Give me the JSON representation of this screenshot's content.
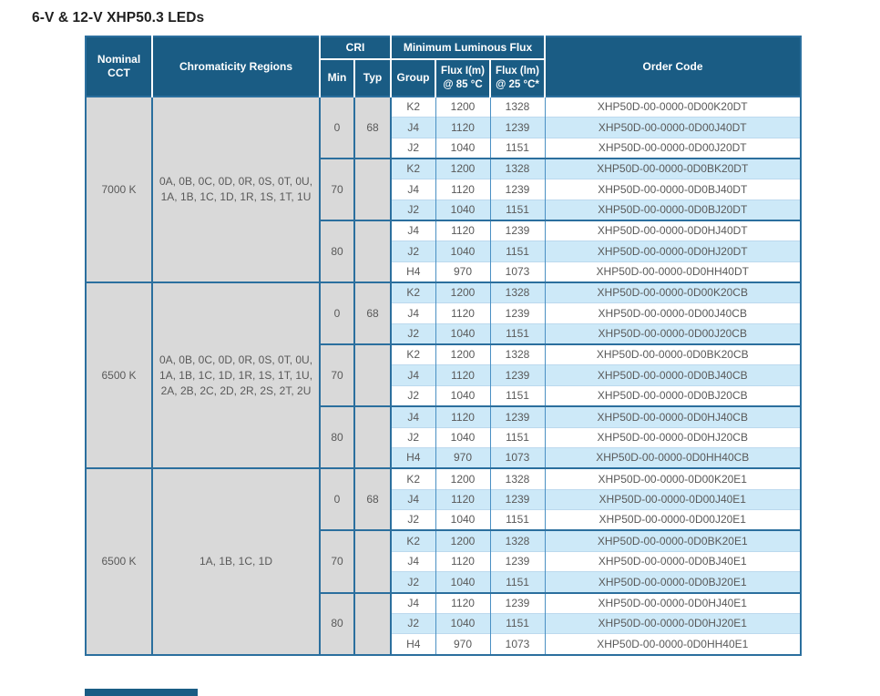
{
  "page_title": "6-V & 12-V XHP50.3 LEDs",
  "colors": {
    "header_navy": "#1a5c84",
    "border_dark": "#2b6f9e",
    "stripe_blue": "#cde9f8",
    "cell_gray": "#d9d9d9",
    "text_gray": "#595959"
  },
  "table": {
    "headers": {
      "nominal_cct": "Nominal\nCCT",
      "chromaticity": "Chromaticity Regions",
      "cri": "CRI",
      "min": "Min",
      "typ": "Typ",
      "min_luminous_flux": "Minimum Luminous Flux",
      "group": "Group",
      "flux85": "Flux I(m)\n@ 85 °C",
      "flux25": "Flux (lm)\n@ 25 °C*",
      "order_code": "Order Code"
    },
    "cct_groups": [
      {
        "cct": "7000 K",
        "chromaticity": "0A, 0B, 0C, 0D, 0R, 0S, 0T, 0U,\n1A, 1B, 1C, 1D, 1R, 1S, 1T, 1U",
        "cri_blocks": [
          {
            "min": "0",
            "typ": "68",
            "rows": [
              {
                "group": "K2",
                "flux85": "1200",
                "flux25": "1328",
                "order": "XHP50D-00-0000-0D00K20DT"
              },
              {
                "group": "J4",
                "flux85": "1120",
                "flux25": "1239",
                "order": "XHP50D-00-0000-0D00J40DT"
              },
              {
                "group": "J2",
                "flux85": "1040",
                "flux25": "1151",
                "order": "XHP50D-00-0000-0D00J20DT"
              }
            ]
          },
          {
            "min": "70",
            "typ": "",
            "rows": [
              {
                "group": "K2",
                "flux85": "1200",
                "flux25": "1328",
                "order": "XHP50D-00-0000-0D0BK20DT"
              },
              {
                "group": "J4",
                "flux85": "1120",
                "flux25": "1239",
                "order": "XHP50D-00-0000-0D0BJ40DT"
              },
              {
                "group": "J2",
                "flux85": "1040",
                "flux25": "1151",
                "order": "XHP50D-00-0000-0D0BJ20DT"
              }
            ]
          },
          {
            "min": "80",
            "typ": "",
            "rows": [
              {
                "group": "J4",
                "flux85": "1120",
                "flux25": "1239",
                "order": "XHP50D-00-0000-0D0HJ40DT"
              },
              {
                "group": "J2",
                "flux85": "1040",
                "flux25": "1151",
                "order": "XHP50D-00-0000-0D0HJ20DT"
              },
              {
                "group": "H4",
                "flux85": "970",
                "flux25": "1073",
                "order": "XHP50D-00-0000-0D0HH40DT"
              }
            ]
          }
        ]
      },
      {
        "cct": "6500 K",
        "chromaticity": "0A, 0B, 0C, 0D, 0R, 0S, 0T, 0U,\n1A, 1B, 1C, 1D, 1R, 1S, 1T, 1U,\n2A, 2B, 2C, 2D, 2R, 2S, 2T, 2U",
        "cri_blocks": [
          {
            "min": "0",
            "typ": "68",
            "rows": [
              {
                "group": "K2",
                "flux85": "1200",
                "flux25": "1328",
                "order": "XHP50D-00-0000-0D00K20CB"
              },
              {
                "group": "J4",
                "flux85": "1120",
                "flux25": "1239",
                "order": "XHP50D-00-0000-0D00J40CB"
              },
              {
                "group": "J2",
                "flux85": "1040",
                "flux25": "1151",
                "order": "XHP50D-00-0000-0D00J20CB"
              }
            ]
          },
          {
            "min": "70",
            "typ": "",
            "rows": [
              {
                "group": "K2",
                "flux85": "1200",
                "flux25": "1328",
                "order": "XHP50D-00-0000-0D0BK20CB"
              },
              {
                "group": "J4",
                "flux85": "1120",
                "flux25": "1239",
                "order": "XHP50D-00-0000-0D0BJ40CB"
              },
              {
                "group": "J2",
                "flux85": "1040",
                "flux25": "1151",
                "order": "XHP50D-00-0000-0D0BJ20CB"
              }
            ]
          },
          {
            "min": "80",
            "typ": "",
            "rows": [
              {
                "group": "J4",
                "flux85": "1120",
                "flux25": "1239",
                "order": "XHP50D-00-0000-0D0HJ40CB"
              },
              {
                "group": "J2",
                "flux85": "1040",
                "flux25": "1151",
                "order": "XHP50D-00-0000-0D0HJ20CB"
              },
              {
                "group": "H4",
                "flux85": "970",
                "flux25": "1073",
                "order": "XHP50D-00-0000-0D0HH40CB"
              }
            ]
          }
        ]
      },
      {
        "cct": "6500 K",
        "chromaticity": "1A, 1B, 1C, 1D",
        "cri_blocks": [
          {
            "min": "0",
            "typ": "68",
            "rows": [
              {
                "group": "K2",
                "flux85": "1200",
                "flux25": "1328",
                "order": "XHP50D-00-0000-0D00K20E1"
              },
              {
                "group": "J4",
                "flux85": "1120",
                "flux25": "1239",
                "order": "XHP50D-00-0000-0D00J40E1"
              },
              {
                "group": "J2",
                "flux85": "1040",
                "flux25": "1151",
                "order": "XHP50D-00-0000-0D00J20E1"
              }
            ]
          },
          {
            "min": "70",
            "typ": "",
            "rows": [
              {
                "group": "K2",
                "flux85": "1200",
                "flux25": "1328",
                "order": "XHP50D-00-0000-0D0BK20E1"
              },
              {
                "group": "J4",
                "flux85": "1120",
                "flux25": "1239",
                "order": "XHP50D-00-0000-0D0BJ40E1"
              },
              {
                "group": "J2",
                "flux85": "1040",
                "flux25": "1151",
                "order": "XHP50D-00-0000-0D0BJ20E1"
              }
            ]
          },
          {
            "min": "80",
            "typ": "",
            "rows": [
              {
                "group": "J4",
                "flux85": "1120",
                "flux25": "1239",
                "order": "XHP50D-00-0000-0D0HJ40E1"
              },
              {
                "group": "J2",
                "flux85": "1040",
                "flux25": "1151",
                "order": "XHP50D-00-0000-0D0HJ20E1"
              },
              {
                "group": "H4",
                "flux85": "970",
                "flux25": "1073",
                "order": "XHP50D-00-0000-0D0HH40E1"
              }
            ]
          }
        ]
      }
    ]
  }
}
